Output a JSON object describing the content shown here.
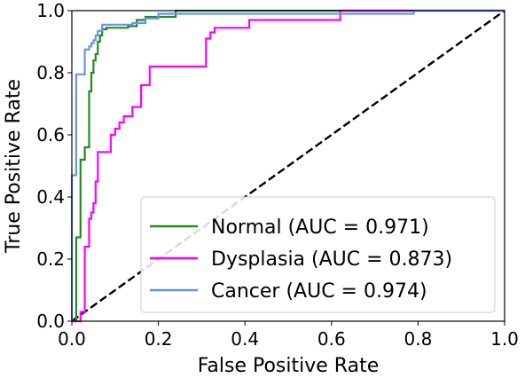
{
  "chart_data": {
    "type": "line",
    "xlabel": "False Positive Rate",
    "ylabel": "True Positive Rate",
    "xlim": [
      0.0,
      1.0
    ],
    "ylim": [
      0.0,
      1.0
    ],
    "x_ticks": [
      "0.0",
      "0.2",
      "0.4",
      "0.6",
      "0.8",
      "1.0"
    ],
    "y_ticks": [
      "0.0",
      "0.2",
      "0.4",
      "0.6",
      "0.8",
      "1.0"
    ],
    "grid": false,
    "legend_position": "lower-right",
    "series": [
      {
        "name": "Normal (AUC = 0.971)",
        "color": "#228b22",
        "x": [
          0.0,
          0.01,
          0.01,
          0.02,
          0.02,
          0.03,
          0.03,
          0.04,
          0.04,
          0.045,
          0.045,
          0.05,
          0.05,
          0.055,
          0.055,
          0.06,
          0.06,
          0.065,
          0.065,
          0.07,
          0.07,
          0.08,
          0.08,
          0.13,
          0.13,
          0.15,
          0.15,
          0.17,
          0.17,
          0.24,
          0.24,
          0.62,
          0.62,
          0.79,
          0.79,
          1.0
        ],
        "y": [
          0.0,
          0.0,
          0.27,
          0.27,
          0.52,
          0.52,
          0.56,
          0.56,
          0.74,
          0.74,
          0.8,
          0.8,
          0.84,
          0.84,
          0.86,
          0.86,
          0.9,
          0.9,
          0.92,
          0.92,
          0.94,
          0.94,
          0.945,
          0.945,
          0.95,
          0.95,
          0.97,
          0.97,
          0.98,
          0.98,
          1.0,
          1.0,
          1.0,
          1.0,
          1.0,
          1.0
        ]
      },
      {
        "name": "Dysplasia (AUC = 0.873)",
        "color": "#ff00ff",
        "x": [
          0.0,
          0.02,
          0.02,
          0.03,
          0.03,
          0.04,
          0.04,
          0.045,
          0.045,
          0.05,
          0.05,
          0.055,
          0.055,
          0.06,
          0.06,
          0.09,
          0.09,
          0.1,
          0.1,
          0.11,
          0.11,
          0.12,
          0.12,
          0.14,
          0.14,
          0.16,
          0.16,
          0.18,
          0.18,
          0.2,
          0.2,
          0.31,
          0.31,
          0.32,
          0.32,
          0.33,
          0.33,
          0.41,
          0.41,
          0.62,
          0.62,
          0.79,
          0.79,
          1.0
        ],
        "y": [
          0.0,
          0.0,
          0.03,
          0.03,
          0.24,
          0.24,
          0.33,
          0.33,
          0.35,
          0.35,
          0.38,
          0.38,
          0.45,
          0.45,
          0.545,
          0.545,
          0.6,
          0.6,
          0.62,
          0.62,
          0.64,
          0.64,
          0.66,
          0.66,
          0.69,
          0.69,
          0.76,
          0.76,
          0.82,
          0.82,
          0.82,
          0.82,
          0.91,
          0.91,
          0.93,
          0.93,
          0.945,
          0.945,
          0.97,
          0.97,
          1.0,
          1.0,
          1.0,
          1.0
        ]
      },
      {
        "name": "Cancer (AUC = 0.974)",
        "color": "#6495ed",
        "x": [
          0.0,
          0.0,
          0.01,
          0.01,
          0.03,
          0.03,
          0.04,
          0.04,
          0.045,
          0.045,
          0.05,
          0.05,
          0.055,
          0.055,
          0.06,
          0.06,
          0.07,
          0.07,
          0.14,
          0.14,
          0.17,
          0.17,
          0.2,
          0.2,
          0.79,
          0.79,
          1.0
        ],
        "y": [
          0.0,
          0.47,
          0.47,
          0.795,
          0.795,
          0.875,
          0.875,
          0.885,
          0.885,
          0.895,
          0.895,
          0.905,
          0.905,
          0.92,
          0.92,
          0.935,
          0.935,
          0.955,
          0.955,
          0.96,
          0.96,
          0.975,
          0.975,
          0.99,
          0.99,
          1.0,
          1.0
        ]
      }
    ],
    "reference_line": {
      "x": [
        0.0,
        1.0
      ],
      "y": [
        0.0,
        1.0
      ],
      "color": "#000000",
      "style": "dashed"
    }
  }
}
